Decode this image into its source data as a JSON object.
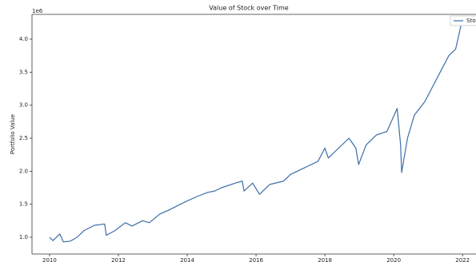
{
  "chart_data": {
    "type": "line",
    "title": "Value of Stock over Time",
    "ylabel": "Portfolio Value",
    "y_offset_label": "1e6",
    "x": [
      2010.0,
      2010.1,
      2010.3,
      2010.4,
      2010.6,
      2010.8,
      2011.0,
      2011.3,
      2011.6,
      2011.65,
      2011.9,
      2012.2,
      2012.4,
      2012.7,
      2012.9,
      2013.2,
      2013.5,
      2013.8,
      2014.0,
      2014.3,
      2014.6,
      2014.8,
      2015.0,
      2015.4,
      2015.6,
      2015.65,
      2015.9,
      2016.1,
      2016.4,
      2016.8,
      2017.0,
      2017.4,
      2017.8,
      2018.0,
      2018.1,
      2018.7,
      2018.9,
      2018.98,
      2019.2,
      2019.5,
      2019.8,
      2020.1,
      2020.2,
      2020.23,
      2020.4,
      2020.6,
      2020.9,
      2021.1,
      2021.4,
      2021.6,
      2021.8,
      2021.95,
      2022.0
    ],
    "series": [
      {
        "name": "Stock",
        "color": "#3b6ea8",
        "values": [
          1.0,
          0.95,
          1.05,
          0.93,
          0.94,
          1.0,
          1.1,
          1.18,
          1.2,
          1.03,
          1.1,
          1.22,
          1.17,
          1.25,
          1.22,
          1.35,
          1.42,
          1.5,
          1.55,
          1.62,
          1.68,
          1.7,
          1.75,
          1.82,
          1.85,
          1.7,
          1.82,
          1.65,
          1.8,
          1.85,
          1.95,
          2.05,
          2.15,
          2.35,
          2.2,
          2.5,
          2.35,
          2.1,
          2.4,
          2.55,
          2.6,
          2.95,
          2.4,
          1.98,
          2.5,
          2.85,
          3.05,
          3.25,
          3.55,
          3.75,
          3.85,
          4.2,
          4.28
        ]
      }
    ],
    "xlim": [
      2009.49,
      2022.6
    ],
    "xticks": [
      2010,
      2012,
      2014,
      2016,
      2018,
      2020,
      2022
    ],
    "ylim": [
      0.746,
      4.375
    ],
    "yticks": [
      {
        "value": 1,
        "label": "1.0"
      },
      {
        "value": 1.5,
        "label": "1.5"
      },
      {
        "value": 2,
        "label": "2.0"
      },
      {
        "value": 2.5,
        "label": "2.5"
      },
      {
        "value": 3,
        "label": "3.0"
      },
      {
        "value": 3.5,
        "label": "3.5"
      },
      {
        "value": 4,
        "label": "4.0"
      }
    ],
    "legend": "upper right"
  }
}
